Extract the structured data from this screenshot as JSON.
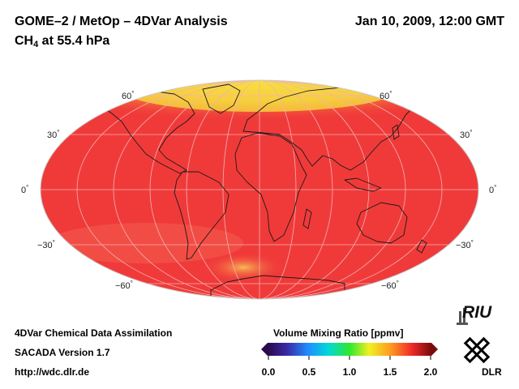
{
  "header": {
    "title": "GOME–2 / MetOp – 4DVar Analysis",
    "datetime": "Jan 10, 2009, 12:00 GMT",
    "subtitle_main": "CH",
    "subtitle_sub": "4",
    "subtitle_rest": " at 55.4 hPa"
  },
  "map": {
    "projection": "mollweide",
    "lat_labels": {
      "l60n": "60",
      "l30n": "30",
      "l0": "0",
      "l30s": "−30",
      "l60s": "−60",
      "r60n": "60",
      "r30n": "30",
      "r0": "0",
      "r30s": "−30",
      "r60s": "−60"
    },
    "colors": {
      "base": "#f03a3a",
      "high": "#f5e646",
      "mid": "#f79a3a",
      "coast": "#1a1a1a",
      "grid": "#f4b0b0"
    }
  },
  "colorbar": {
    "title": "Volume Mixing Ratio [ppmv]",
    "ticks": [
      "0.0",
      "0.5",
      "1.0",
      "1.5",
      "2.0"
    ],
    "colors": [
      "#2a0a4a",
      "#3a2aa8",
      "#1e90ff",
      "#00d8d8",
      "#2ee82e",
      "#f0f020",
      "#ff9a20",
      "#f02a2a",
      "#7a0a0a"
    ]
  },
  "footer": {
    "line1": "4DVar Chemical Data Assimilation",
    "line2": "SACADA Version 1.7",
    "line3": "http://wdc.dlr.de"
  },
  "logos": {
    "riu": "RIU",
    "dlr": "DLR"
  }
}
